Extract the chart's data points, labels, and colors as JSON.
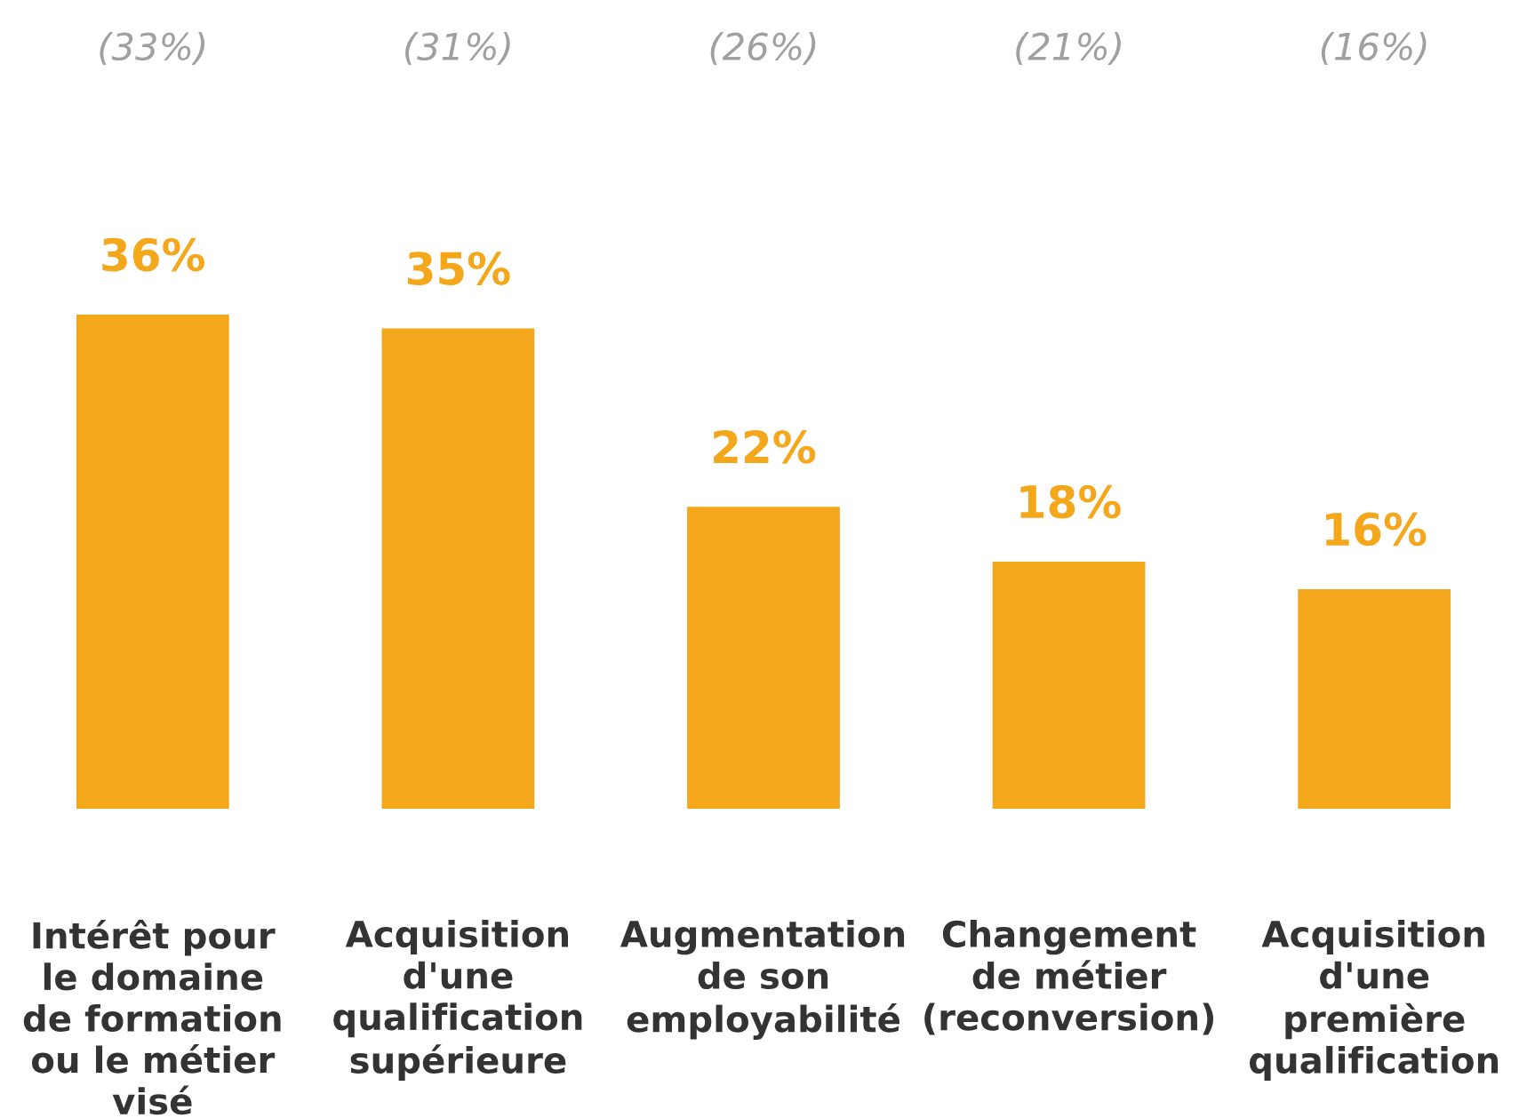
{
  "chart_data": {
    "type": "bar",
    "categories": [
      "Intérêt pour\nle domaine\nde formation\nou le métier\nvisé",
      "Acquisition\nd'une\nqualification\nsupérieure",
      "Augmentation\nde son\nemployabilité",
      "Changement\nde métier\n(reconversion)",
      "Acquisition\nd'une\npremière\nqualification"
    ],
    "values": [
      36,
      35,
      22,
      18,
      16
    ],
    "value_labels": [
      "36%",
      "35%",
      "22%",
      "18%",
      "16%"
    ],
    "color": "#f5a71c",
    "annotations": [
      "(33%)",
      "(31%)",
      "(26%)",
      "(21%)",
      "(16%)"
    ],
    "grid": false,
    "legend": false
  }
}
